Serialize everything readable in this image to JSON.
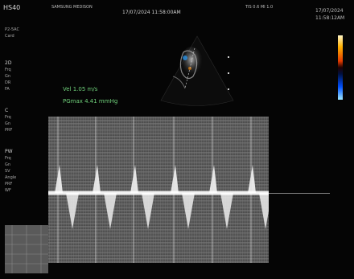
{
  "header": {
    "brand": "HS40",
    "left_info": "SAMSUNG MEDISON",
    "center_title": "17/07/2024 11:58:00AM",
    "right_info": "TIS 0.6  MI 1.0",
    "right_date": "17/07/2024",
    "right_time": "11:58:12AM"
  },
  "left_panel": {
    "probe": "P2-5AC",
    "preset": "Card",
    "sections": [
      {
        "title": "2D",
        "lines": [
          "Frq",
          "Gn",
          "DR",
          "FA"
        ]
      },
      {
        "title": "C",
        "lines": [
          "Frq",
          "Gn",
          "PRF"
        ]
      },
      {
        "title": "PW",
        "lines": [
          "Frq",
          "Gn",
          "SV",
          "Angle",
          "PRF",
          "WF"
        ]
      }
    ]
  },
  "measurements": {
    "vmax": "Vel    1.05 m/s",
    "pgmax": "PGmax  4.41 mmHg"
  },
  "colors": {
    "background": "#050505",
    "text": "#cfcfcf",
    "measure_text": "#6fd07a",
    "doppler_bg": "#5c5c5c"
  }
}
